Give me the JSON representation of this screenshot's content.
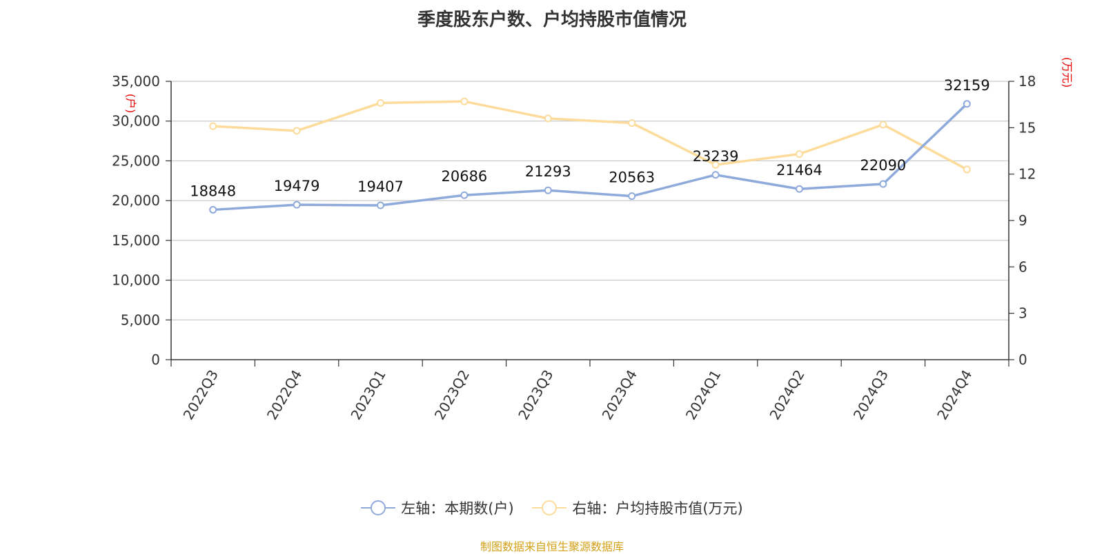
{
  "chart_data": {
    "type": "line",
    "title": "季度股东户数、户均持股市值情况",
    "categories": [
      "2022Q3",
      "2022Q4",
      "2023Q1",
      "2023Q2",
      "2023Q3",
      "2023Q4",
      "2024Q1",
      "2024Q2",
      "2024Q3",
      "2024Q4"
    ],
    "left_axis": {
      "unit_label": "(户)",
      "ylim": [
        0,
        35000
      ],
      "ticks": [
        "0",
        "5,000",
        "10,000",
        "15,000",
        "20,000",
        "25,000",
        "30,000",
        "35,000"
      ]
    },
    "right_axis": {
      "unit_label": "(万元)",
      "ylim": [
        0,
        18
      ],
      "ticks": [
        "0",
        "3",
        "6",
        "9",
        "12",
        "15",
        "18"
      ]
    },
    "series": [
      {
        "name": "左轴：本期数(户)",
        "axis": "left",
        "color": "#8eaadb",
        "values": [
          18848,
          19479,
          19407,
          20686,
          21293,
          20563,
          23239,
          21464,
          22090,
          32159
        ],
        "labels": [
          "18848",
          "19479",
          "19407",
          "20686",
          "21293",
          "20563",
          "23239",
          "21464",
          "22090",
          "32159"
        ]
      },
      {
        "name": "右轴：户均持股市值(万元)",
        "axis": "right",
        "color": "#fddb9b",
        "values": [
          15.1,
          14.8,
          16.6,
          16.7,
          15.6,
          15.3,
          12.6,
          13.3,
          15.2,
          12.3
        ]
      }
    ],
    "grid": true,
    "legend_position": "bottom"
  },
  "source": {
    "text": "制图数据来自恒生聚源数据库",
    "color": "#d4a017"
  }
}
